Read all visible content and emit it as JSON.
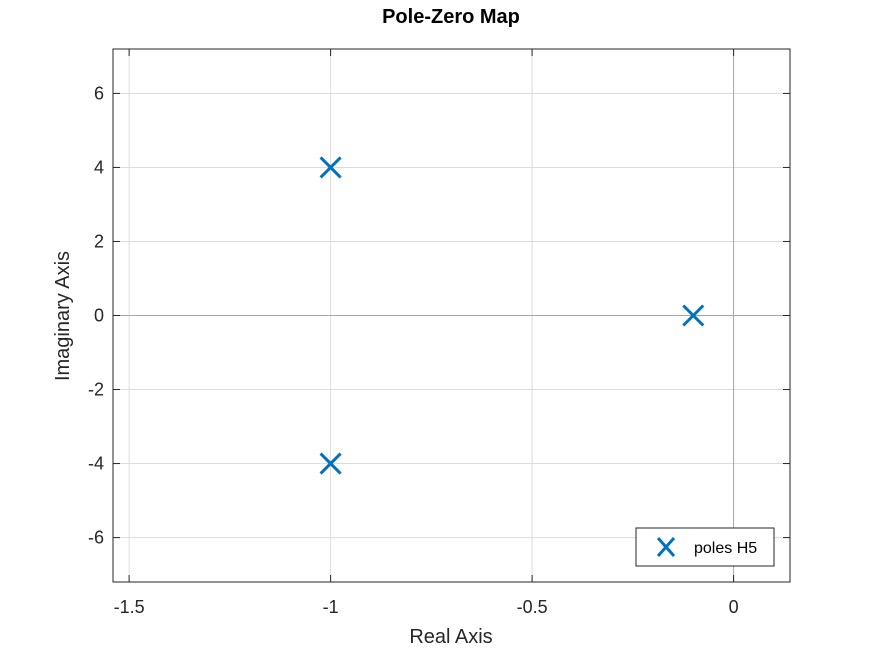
{
  "chart_data": {
    "type": "scatter",
    "title": "Pole-Zero Map",
    "xlabel": "Real Axis",
    "ylabel": "Imaginary Axis",
    "xlim": [
      -1.54,
      0.14
    ],
    "ylim": [
      -7.2,
      7.2
    ],
    "xticks": [
      -1.5,
      -1,
      -0.5,
      0
    ],
    "xtick_labels": [
      "-1.5",
      "-1",
      "-0.5",
      "0"
    ],
    "yticks": [
      -6,
      -4,
      -2,
      0,
      2,
      4,
      6
    ],
    "ytick_labels": [
      "-6",
      "-4",
      "-2",
      "0",
      "2",
      "4",
      "6"
    ],
    "grid": true,
    "legend_position": "bottom-right",
    "series": [
      {
        "name": "poles H5",
        "marker": "x",
        "color": "#0072BD",
        "points": [
          {
            "x": -1,
            "y": 4
          },
          {
            "x": -1,
            "y": -4
          },
          {
            "x": -0.1,
            "y": 0
          }
        ]
      }
    ]
  }
}
